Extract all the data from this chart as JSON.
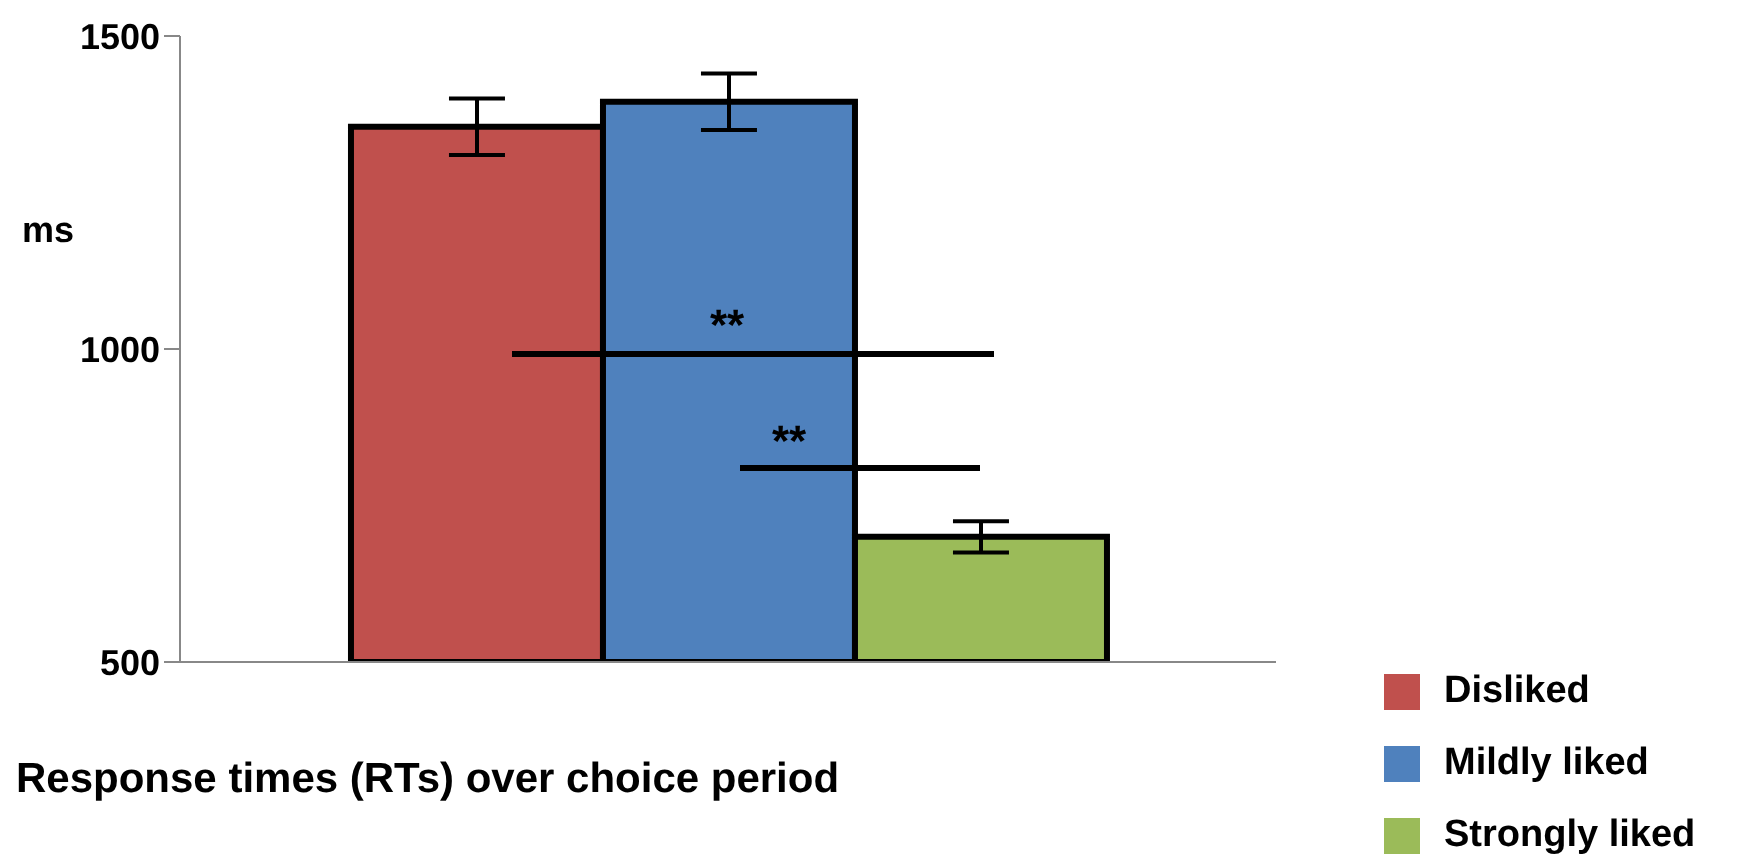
{
  "chart_data": {
    "type": "bar",
    "ylabel": "ms",
    "categories": [
      null
    ],
    "series": [
      {
        "name": "Disliked",
        "color": "#c0504d",
        "values": [
          1355
        ],
        "errors": [
          45
        ]
      },
      {
        "name": "Mildly liked",
        "color": "#4f81bd",
        "values": [
          1395
        ],
        "errors": [
          45
        ]
      },
      {
        "name": "Strongly liked",
        "color": "#9bbb59",
        "values": [
          700
        ],
        "errors": [
          25
        ]
      }
    ],
    "ylim": [
      500,
      1500
    ],
    "yticks": [
      500,
      1000,
      1500
    ],
    "legend": "bottom right",
    "annotations": [
      "**",
      "**",
      "Response times (RTs) over choice period"
    ]
  }
}
